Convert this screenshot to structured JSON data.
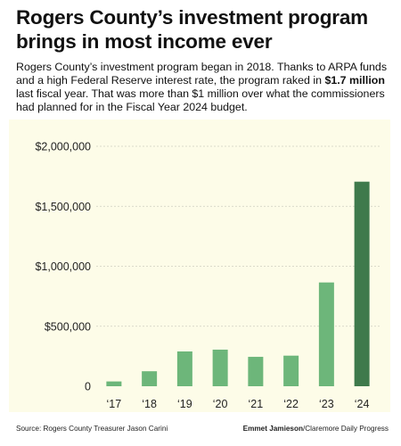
{
  "headline": "Rogers County’s investment program brings in most income ever",
  "dek": {
    "part1": "Rogers County’s investment program began in 2018. Thanks to ARPA funds and a high Federal Reserve interest rate, the program raked in ",
    "bold": "$1.7 million",
    "part2": " last fiscal year. That was more than $1 million over what the commissioners had planned for in the Fiscal Year 2024 budget."
  },
  "footer": {
    "source": "Source: Rogers County Treasurer Jason Carini",
    "credit_name": "Emmet Jamieson",
    "credit_outlet": "/Claremore Daily Progress"
  },
  "colors": {
    "bar": "#6db67a",
    "bar_highlight": "#3f7a4c",
    "panel": "#fdfce8"
  },
  "chart_data": {
    "type": "bar",
    "title": "",
    "xlabel": "",
    "ylabel": "",
    "categories": [
      "‘17",
      "‘18",
      "‘19",
      "‘20",
      "‘21",
      "‘22",
      "‘23",
      "‘24"
    ],
    "values": [
      40000,
      125000,
      290000,
      305000,
      245000,
      255000,
      865000,
      1705000
    ],
    "highlight_index": 7,
    "ylim": [
      0,
      2000000
    ],
    "yticks": [
      0,
      500000,
      1000000,
      1500000,
      2000000
    ],
    "ytick_labels": [
      "0",
      "$500,000",
      "$1,000,000",
      "$1,500,000",
      "$2,000,000"
    ],
    "grid": true,
    "legend": "none"
  }
}
